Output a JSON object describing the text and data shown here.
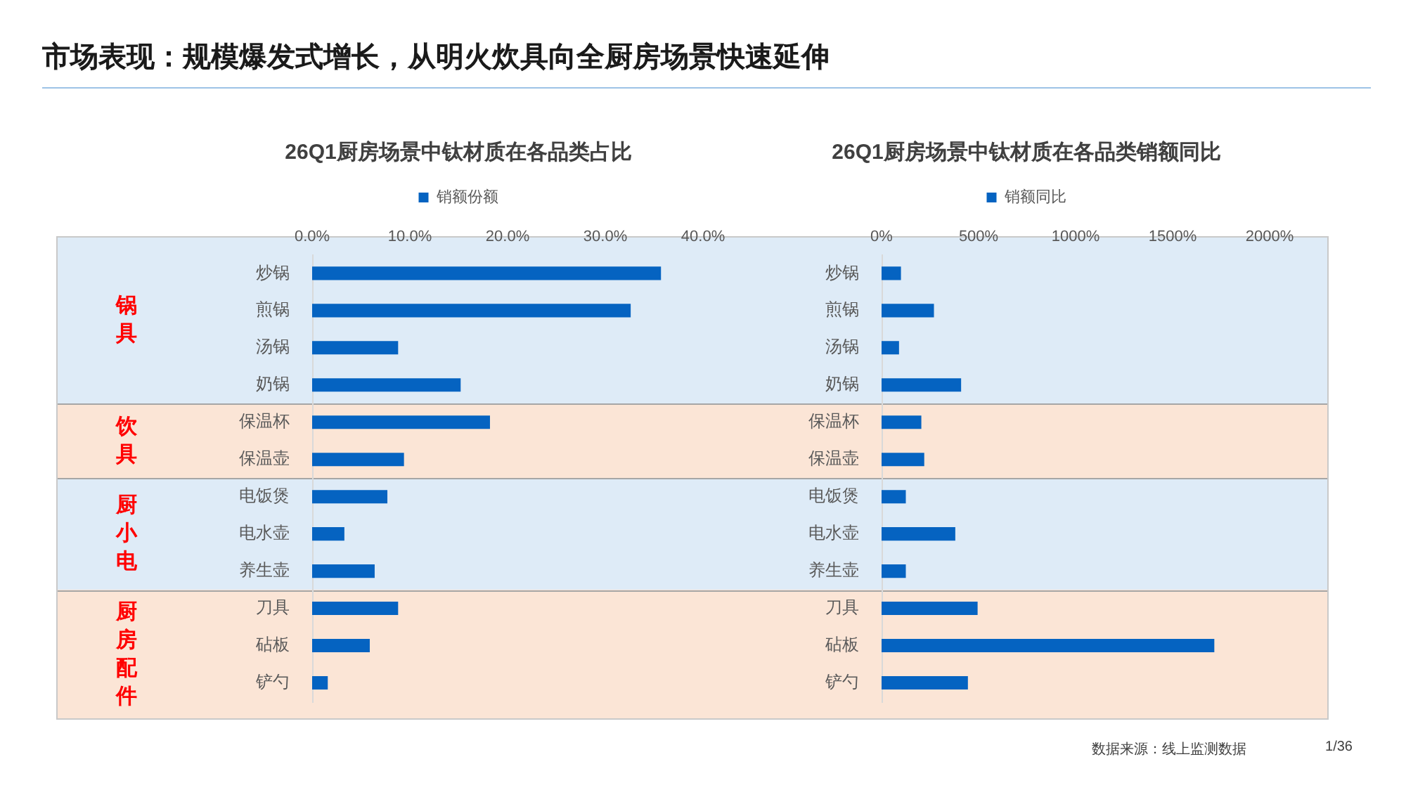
{
  "chart_data": [
    {
      "type": "bar",
      "orientation": "horizontal",
      "title": "26Q1厨房场景中钛材质在各品类占比",
      "categories": [
        "炒锅",
        "煎锅",
        "汤锅",
        "奶锅",
        "保温杯",
        "保温壶",
        "电饭煲",
        "电水壶",
        "养生壶",
        "刀具",
        "砧板",
        "铲勺"
      ],
      "series": [
        {
          "name": "销额份额",
          "color": "#0563c1",
          "values": [
            35.7,
            32.6,
            8.8,
            15.2,
            18.2,
            9.4,
            7.7,
            3.3,
            6.4,
            8.8,
            5.9,
            1.6
          ]
        }
      ],
      "xlim": [
        0,
        40
      ],
      "xticks": [
        {
          "value": 0,
          "label": "0.0%"
        },
        {
          "value": 10,
          "label": "10.0%"
        },
        {
          "value": 20,
          "label": "20.0%"
        },
        {
          "value": 30,
          "label": "30.0%"
        },
        {
          "value": 40,
          "label": "40.0%"
        }
      ],
      "legend": "top",
      "bands": [
        {
          "axis": "y",
          "from": "炒锅",
          "to": "奶锅",
          "label": "锅具",
          "color": "#deebf7"
        },
        {
          "axis": "y",
          "from": "保温杯",
          "to": "保温壶",
          "label": "饮具",
          "color": "#fbe5d6"
        },
        {
          "axis": "y",
          "from": "电饭煲",
          "to": "养生壶",
          "label": "厨小电",
          "color": "#deebf7"
        },
        {
          "axis": "y",
          "from": "刀具",
          "to": "铲勺",
          "label": "厨房配件",
          "color": "#fbe5d6"
        }
      ],
      "annotations": [
        "市场表现：规模爆发式增长，从明火炊具向全厨房场景快速延伸"
      ]
    },
    {
      "type": "bar",
      "orientation": "horizontal",
      "title": "26Q1厨房场景中钛材质在各品类销额同比",
      "categories": [
        "炒锅",
        "煎锅",
        "汤锅",
        "奶锅",
        "保温杯",
        "保温壶",
        "电饭煲",
        "电水壶",
        "养生壶",
        "刀具",
        "砧板",
        "铲勺"
      ],
      "series": [
        {
          "name": "销额同比",
          "color": "#0563c1",
          "values": [
            100,
            270,
            90,
            410,
            205,
            220,
            125,
            380,
            125,
            495,
            1715,
            445
          ]
        }
      ],
      "xlim": [
        0,
        2000
      ],
      "xticks": [
        {
          "value": 0,
          "label": "0%"
        },
        {
          "value": 500,
          "label": "500%"
        },
        {
          "value": 1000,
          "label": "1000%"
        },
        {
          "value": 1500,
          "label": "1500%"
        },
        {
          "value": 2000,
          "label": "2000%"
        }
      ],
      "legend": "top",
      "bands": [
        {
          "axis": "y",
          "from": "炒锅",
          "to": "奶锅",
          "color": "#deebf7"
        },
        {
          "axis": "y",
          "from": "保温杯",
          "to": "保温壶",
          "color": "#fbe5d6"
        },
        {
          "axis": "y",
          "from": "电饭煲",
          "to": "养生壶",
          "color": "#deebf7"
        },
        {
          "axis": "y",
          "from": "刀具",
          "to": "铲勺",
          "color": "#fbe5d6"
        }
      ],
      "annotations": [
        "数据来源：线上监测数据",
        "1/36"
      ]
    }
  ]
}
